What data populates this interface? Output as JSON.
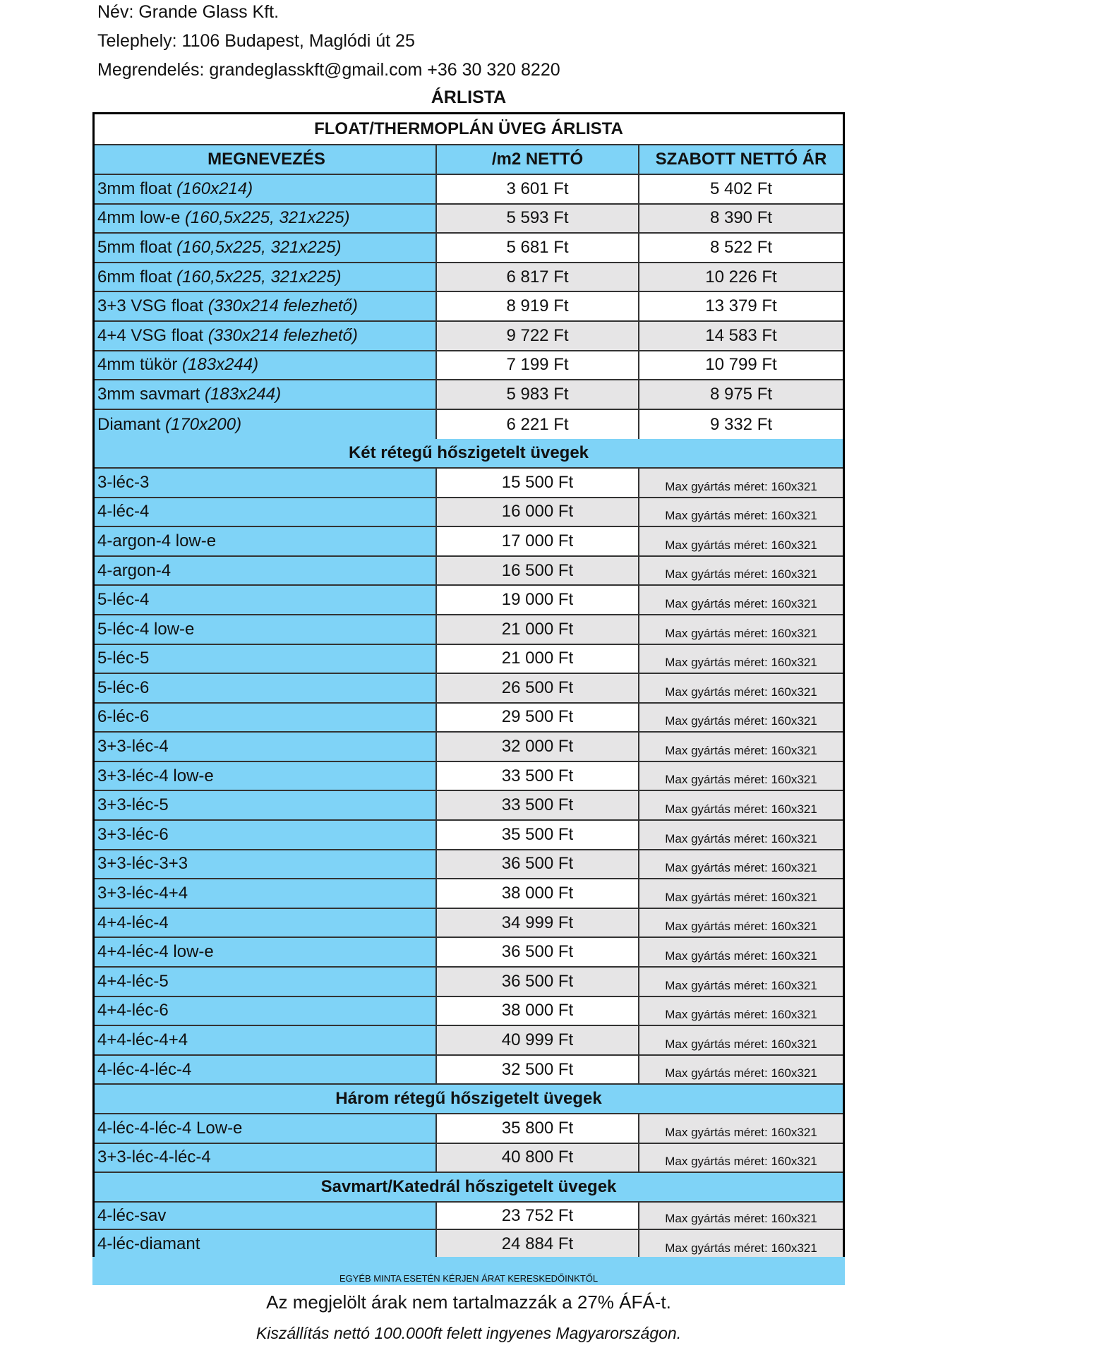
{
  "header": {
    "name": "Név: Grande Glass Kft.",
    "site": "Telephely: 1106 Budapest, Maglódi út 25",
    "order": "Megrendelés: grandeglasskft@gmail.com +36 30 320 8220",
    "title": "ÁRLISTA"
  },
  "table": {
    "title": "FLOAT/THERMOPLÁN ÜVEG ÁRLISTA",
    "columns": [
      "MEGNEVEZÉS",
      "/m2 NETTÓ",
      "SZABOTT NETTÓ ÁR"
    ],
    "float_rows": [
      {
        "name": "3mm float ",
        "size": "(160x214)",
        "price": "3 601 Ft",
        "cut": "5 402 Ft"
      },
      {
        "name": "4mm low-e ",
        "size": "(160,5x225, 321x225)",
        "price": "5 593 Ft",
        "cut": "8 390 Ft"
      },
      {
        "name": "5mm float ",
        "size": "(160,5x225, 321x225)",
        "price": "5 681 Ft",
        "cut": "8 522 Ft"
      },
      {
        "name": "6mm float ",
        "size": "(160,5x225, 321x225)",
        "price": "6 817 Ft",
        "cut": "10 226 Ft"
      },
      {
        "name": "3+3 VSG float ",
        "size": "(330x214 felezhető)",
        "price": "8 919 Ft",
        "cut": "13 379 Ft"
      },
      {
        "name": "4+4 VSG float ",
        "size": "(330x214 felezhető)",
        "price": "9 722 Ft",
        "cut": "14 583 Ft"
      },
      {
        "name": "4mm tükör ",
        "size": "(183x244)",
        "price": "7 199 Ft",
        "cut": "10 799 Ft"
      },
      {
        "name": "3mm savmart ",
        "size": "(183x244)",
        "price": "5 983 Ft",
        "cut": "8 975 Ft"
      },
      {
        "name": "Diamant ",
        "size": "(170x200)",
        "price": "6 221 Ft",
        "cut": "9 332 Ft"
      }
    ],
    "sections": [
      {
        "title": "Két rétegű hőszigetelt üvegek",
        "rows": [
          {
            "name": "3-léc-3",
            "price": "15 500 Ft",
            "note": "Max gyártás méret: 160x321"
          },
          {
            "name": "4-léc-4",
            "price": "16 000 Ft",
            "note": "Max gyártás méret: 160x321"
          },
          {
            "name": "4-argon-4 low-e",
            "price": "17 000 Ft",
            "note": "Max gyártás méret: 160x321"
          },
          {
            "name": "4-argon-4",
            "price": "16 500 Ft",
            "note": "Max gyártás méret: 160x321"
          },
          {
            "name": "5-léc-4",
            "price": "19 000 Ft",
            "note": "Max gyártás méret: 160x321"
          },
          {
            "name": "5-léc-4 low-e",
            "price": "21 000 Ft",
            "note": "Max gyártás méret: 160x321"
          },
          {
            "name": "5-léc-5",
            "price": "21 000 Ft",
            "note": "Max gyártás méret: 160x321"
          },
          {
            "name": "5-léc-6",
            "price": "26 500 Ft",
            "note": "Max gyártás méret: 160x321"
          },
          {
            "name": "6-léc-6",
            "price": "29 500 Ft",
            "note": "Max gyártás méret: 160x321"
          },
          {
            "name": "3+3-léc-4",
            "price": "32 000 Ft",
            "note": "Max gyártás méret: 160x321"
          },
          {
            "name": "3+3-léc-4 low-e",
            "price": "33 500 Ft",
            "note": "Max gyártás méret: 160x321"
          },
          {
            "name": "3+3-léc-5",
            "price": "33 500 Ft",
            "note": "Max gyártás méret: 160x321"
          },
          {
            "name": "3+3-léc-6",
            "price": "35 500 Ft",
            "note": "Max gyártás méret: 160x321"
          },
          {
            "name": "3+3-léc-3+3",
            "price": "36 500 Ft",
            "note": "Max gyártás méret: 160x321"
          },
          {
            "name": "3+3-léc-4+4",
            "price": "38 000 Ft",
            "note": "Max gyártás méret: 160x321"
          },
          {
            "name": "4+4-léc-4",
            "price": "34 999 Ft",
            "note": "Max gyártás méret: 160x321"
          },
          {
            "name": "4+4-léc-4 low-e",
            "price": "36 500 Ft",
            "note": "Max gyártás méret: 160x321"
          },
          {
            "name": "4+4-léc-5",
            "price": "36 500 Ft",
            "note": "Max gyártás méret: 160x321"
          },
          {
            "name": "4+4-léc-6",
            "price": "38 000 Ft",
            "note": "Max gyártás méret: 160x321"
          },
          {
            "name": "4+4-léc-4+4",
            "price": "40 999 Ft",
            "note": "Max gyártás méret: 160x321"
          },
          {
            "name": "4-léc-4-léc-4",
            "price": "32 500 Ft",
            "note": "Max gyártás méret: 160x321"
          }
        ]
      },
      {
        "title": "Három rétegű hőszigetelt üvegek",
        "rows": [
          {
            "name": "4-léc-4-léc-4 Low-e",
            "price": "35 800 Ft",
            "note": "Max gyártás méret: 160x321"
          },
          {
            "name": "3+3-léc-4-léc-4",
            "price": "40 800 Ft",
            "note": "Max gyártás méret: 160x321"
          }
        ]
      },
      {
        "title": "Savmart/Katedrál hőszigetelt üvegek",
        "rows": [
          {
            "name": "4-léc-sav",
            "price": "23 752 Ft",
            "note": "Max gyártás méret: 160x321"
          },
          {
            "name": "4-léc-diamant",
            "price": "24 884 Ft",
            "note": "Max gyártás méret: 160x321"
          }
        ]
      }
    ]
  },
  "footer": {
    "band": "EGYÉB MINTA ESETÉN KÉRJEN ÁRAT KERESKEDŐINKTŐL",
    "vat": "Az megjelölt árak nem tartalmazzák a 27% ÁFÁ-t.",
    "shipping": "Kiszállítás nettó 100.000ft felett ingyenes Magyarországon."
  },
  "colors": {
    "accent": "#7fd3f7",
    "alt_row": "#e6e5e6"
  }
}
